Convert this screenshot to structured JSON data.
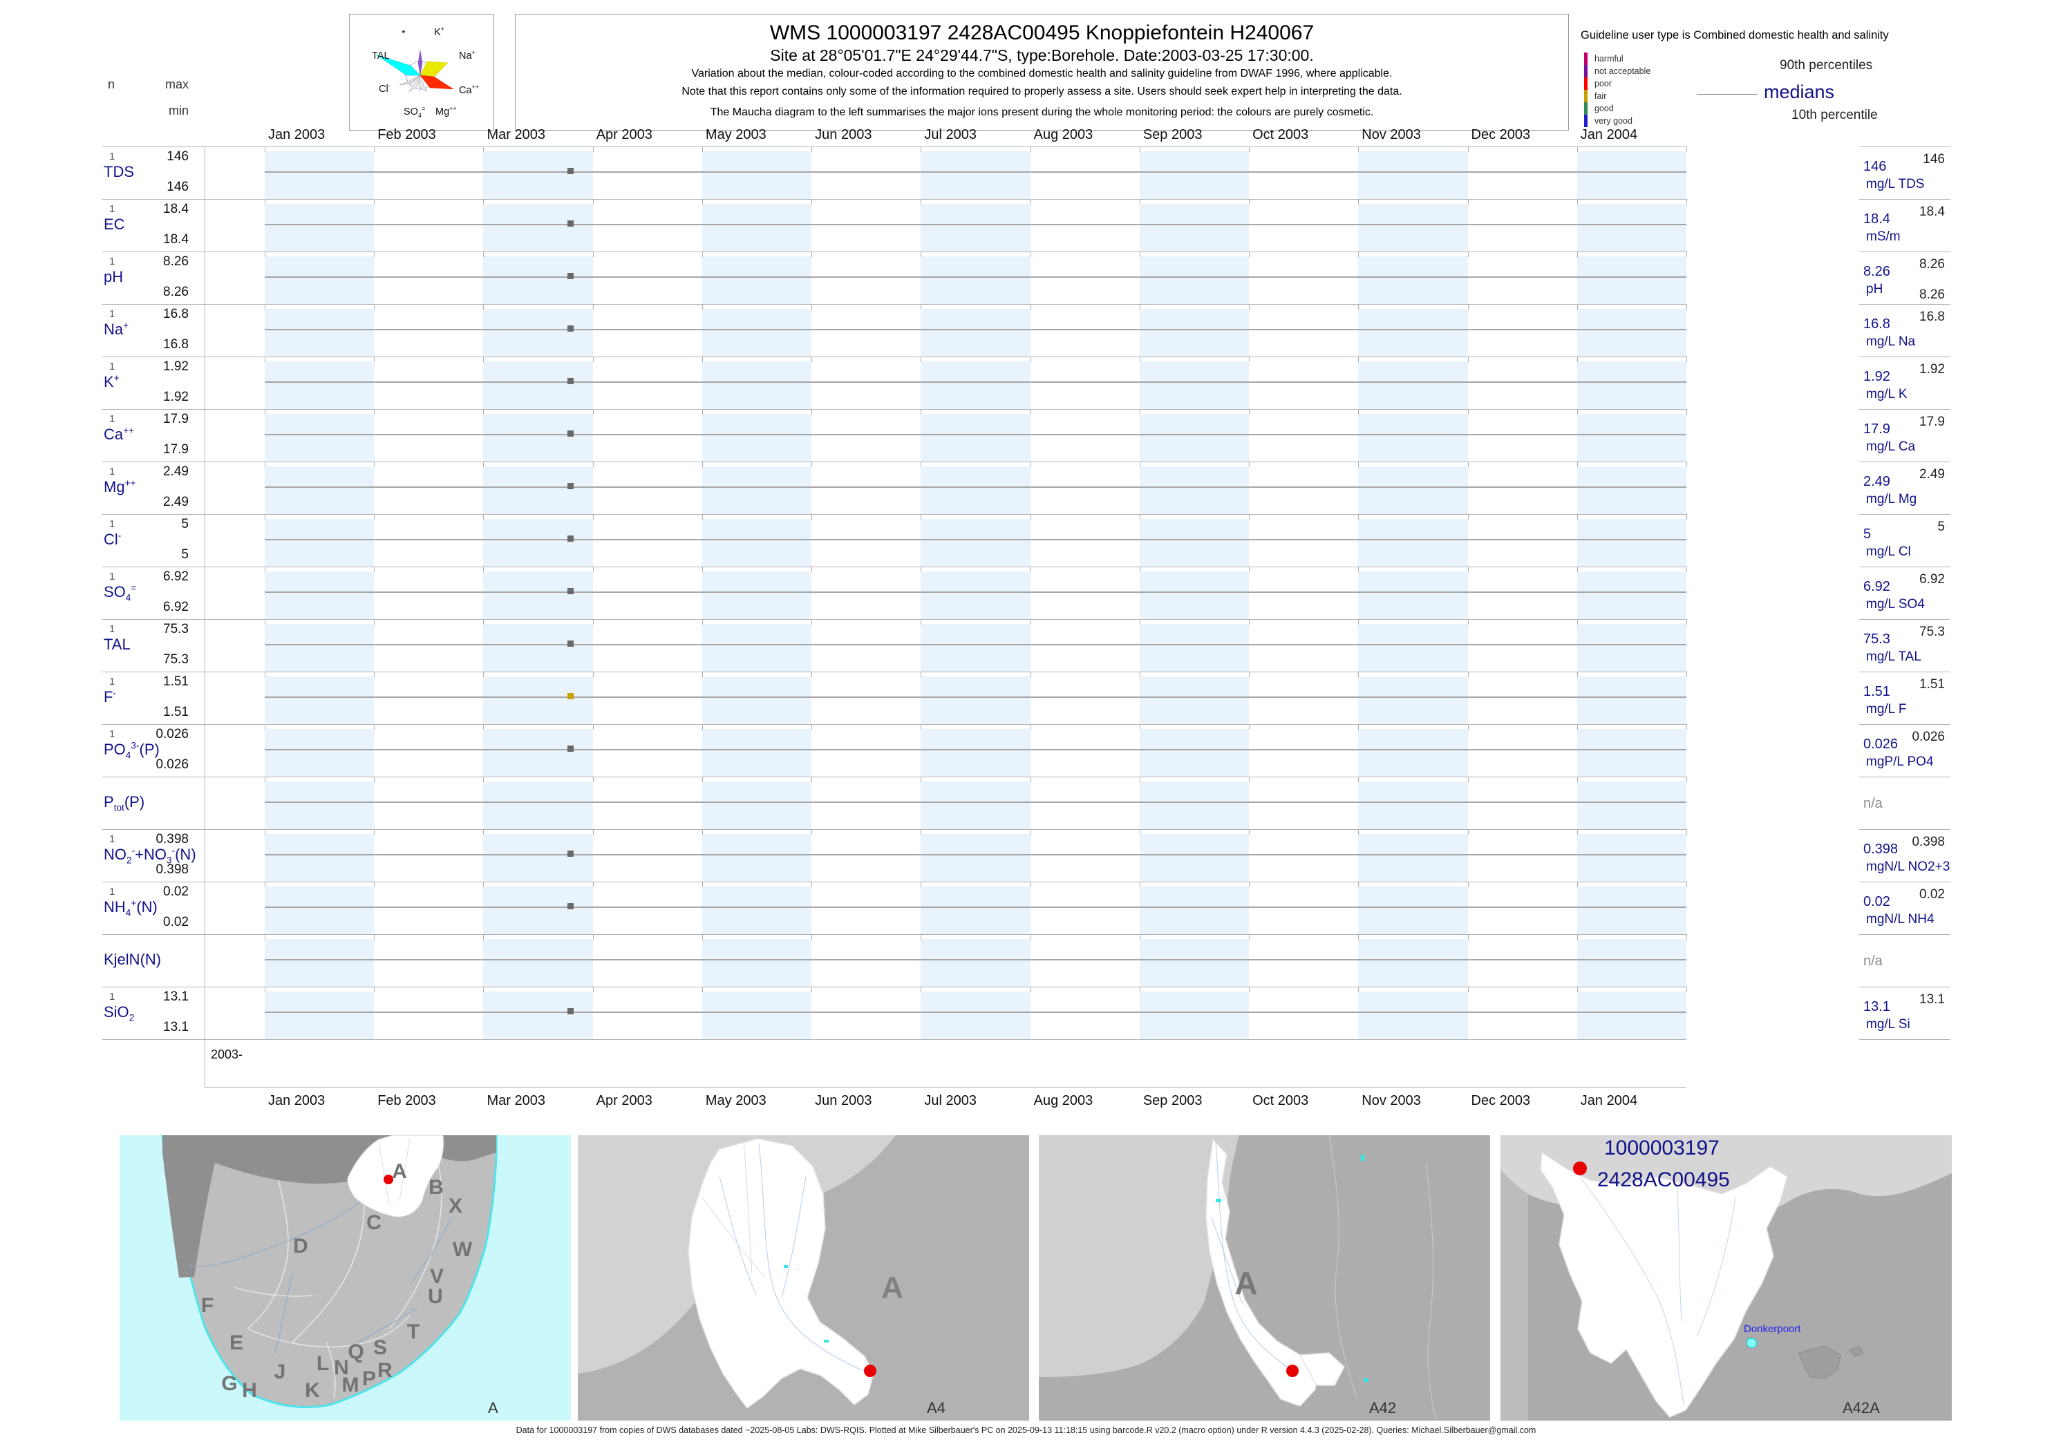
{
  "header": {
    "title": "WMS 1000003197 2428AC00495 Knoppiefontein H240067",
    "subtitle": "Site at 28°05'01.7\"E 24°29'44.7\"S, type:Borehole. Date:2003-03-25 17:30:00.",
    "note1": "Variation about the median,  colour-coded according to the combined domestic health and salinity guideline from DWAF 1996, where applicable.",
    "note2": "Note that this report contains only some of the information required to properly assess a site. Users should seek expert help in interpreting the data.",
    "note3": "The Maucha diagram to the left summarises the major ions present during the whole monitoring period: the colours are purely cosmetic."
  },
  "left_axis": {
    "n_label": "n",
    "max_label": "max",
    "min_label": "min"
  },
  "maucha": {
    "labels": [
      {
        "name": "star",
        "html": "*"
      },
      {
        "name": "k",
        "html": "K<sup>+</sup>"
      },
      {
        "name": "tal",
        "html": "TAL"
      },
      {
        "name": "na",
        "html": "Na<sup>+</sup>"
      },
      {
        "name": "cl",
        "html": "Cl<sup>-</sup>"
      },
      {
        "name": "ca",
        "html": "Ca<sup>++</sup>"
      },
      {
        "name": "so4",
        "html": "SO<sub>4</sub><sup>=</sup>"
      },
      {
        "name": "mg",
        "html": "Mg<sup>++</sup>"
      }
    ]
  },
  "guideline_legend": {
    "title": "Guideline user type is Combined domestic health and salinity",
    "classes": [
      {
        "label": "harmful",
        "color": "#C4006B"
      },
      {
        "label": "not acceptable",
        "color": "#7A0F9E"
      },
      {
        "label": "poor",
        "color": "#FF0000"
      },
      {
        "label": "fair",
        "color": "#C8A000"
      },
      {
        "label": "good",
        "color": "#2E8B57"
      },
      {
        "label": "very good",
        "color": "#1F1FD1"
      }
    ],
    "p90_label": "90th percentiles",
    "median_label": "medians",
    "p10_label": "10th percentile"
  },
  "months": [
    "Jan 2003",
    "Feb 2003",
    "Mar 2003",
    "Apr 2003",
    "May 2003",
    "Jun 2003",
    "Jul 2003",
    "Aug 2003",
    "Sep 2003",
    "Oct 2003",
    "Nov 2003",
    "Dec 2003",
    "Jan 2004"
  ],
  "year_tick_label": "2003-",
  "na_label": "n/a",
  "rows": [
    {
      "key": "tds",
      "param_html": "TDS",
      "n": "1",
      "max": "146",
      "min": "146",
      "p90": "146",
      "median": "146",
      "unit": "mg/L TDS",
      "p10": null,
      "na": false,
      "point_color": "#696969"
    },
    {
      "key": "ec",
      "param_html": "EC",
      "n": "1",
      "max": "18.4",
      "min": "18.4",
      "p90": "18.4",
      "median": "18.4",
      "unit": "mS/m",
      "p10": null,
      "na": false,
      "point_color": "#696969"
    },
    {
      "key": "ph",
      "param_html": "pH",
      "n": "1",
      "max": "8.26",
      "min": "8.26",
      "p90": "8.26",
      "median": "8.26",
      "unit": "pH",
      "p10": "8.26",
      "na": false,
      "point_color": "#696969"
    },
    {
      "key": "na-ion",
      "param_html": "Na<sup>+</sup>",
      "n": "1",
      "max": "16.8",
      "min": "16.8",
      "p90": "16.8",
      "median": "16.8",
      "unit": "mg/L Na",
      "p10": null,
      "na": false,
      "point_color": "#696969"
    },
    {
      "key": "k-ion",
      "param_html": "K<sup>+</sup>",
      "n": "1",
      "max": "1.92",
      "min": "1.92",
      "p90": "1.92",
      "median": "1.92",
      "unit": "mg/L K",
      "p10": null,
      "na": false,
      "point_color": "#696969"
    },
    {
      "key": "ca-ion",
      "param_html": "Ca<sup>++</sup>",
      "n": "1",
      "max": "17.9",
      "min": "17.9",
      "p90": "17.9",
      "median": "17.9",
      "unit": "mg/L Ca",
      "p10": null,
      "na": false,
      "point_color": "#696969"
    },
    {
      "key": "mg-ion",
      "param_html": "Mg<sup>++</sup>",
      "n": "1",
      "max": "2.49",
      "min": "2.49",
      "p90": "2.49",
      "median": "2.49",
      "unit": "mg/L Mg",
      "p10": null,
      "na": false,
      "point_color": "#696969"
    },
    {
      "key": "cl-ion",
      "param_html": "Cl<sup>-</sup>",
      "n": "1",
      "max": "5",
      "min": "5",
      "p90": "5",
      "median": "5",
      "unit": "mg/L Cl",
      "p10": null,
      "na": false,
      "point_color": "#696969"
    },
    {
      "key": "so4",
      "param_html": "SO<sub>4</sub><sup>=</sup>",
      "n": "1",
      "max": "6.92",
      "min": "6.92",
      "p90": "6.92",
      "median": "6.92",
      "unit": "mg/L SO4",
      "p10": null,
      "na": false,
      "point_color": "#696969"
    },
    {
      "key": "tal",
      "param_html": "TAL",
      "n": "1",
      "max": "75.3",
      "min": "75.3",
      "p90": "75.3",
      "median": "75.3",
      "unit": "mg/L TAL",
      "p10": null,
      "na": false,
      "point_color": "#696969"
    },
    {
      "key": "f-ion",
      "param_html": "F<sup>-</sup>",
      "n": "1",
      "max": "1.51",
      "min": "1.51",
      "p90": "1.51",
      "median": "1.51",
      "unit": "mg/L F",
      "p10": null,
      "na": false,
      "point_color": "#C8A000"
    },
    {
      "key": "po4",
      "param_html": "PO<sub>4</sub><sup>3-</sup>(P)",
      "n": "1",
      "max": "0.026",
      "min": "0.026",
      "p90": "0.026",
      "median": "0.026",
      "unit": "mgP/L PO4",
      "p10": null,
      "na": false,
      "point_color": "#696969"
    },
    {
      "key": "ptot",
      "param_html": "P<sub>tot</sub>(P)",
      "n": null,
      "max": null,
      "min": null,
      "p90": null,
      "median": null,
      "unit": null,
      "p10": null,
      "na": true,
      "point_color": null
    },
    {
      "key": "no2no3",
      "param_html": "NO<sub>2</sub><sup>-</sup>+NO<sub>3</sub><sup>-</sup>(N)",
      "n": "1",
      "max": "0.398",
      "min": "0.398",
      "p90": "0.398",
      "median": "0.398",
      "unit": "mgN/L NO2+3",
      "p10": null,
      "na": false,
      "point_color": "#696969"
    },
    {
      "key": "nh4",
      "param_html": "NH<sub>4</sub><sup>+</sup>(N)",
      "n": "1",
      "max": "0.02",
      "min": "0.02",
      "p90": "0.02",
      "median": "0.02",
      "unit": "mgN/L NH4",
      "p10": null,
      "na": false,
      "point_color": "#696969"
    },
    {
      "key": "kjeln",
      "param_html": "KjelN(N)",
      "n": null,
      "max": null,
      "min": null,
      "p90": null,
      "median": null,
      "unit": null,
      "p10": null,
      "na": true,
      "point_color": null
    },
    {
      "key": "sio2",
      "param_html": "SiO<sub>2</sub>",
      "n": "1",
      "max": "13.1",
      "min": "13.1",
      "p90": "13.1",
      "median": "13.1",
      "unit": "mg/L Si",
      "p10": null,
      "na": false,
      "point_color": "#696969"
    }
  ],
  "maps": [
    {
      "label": "A"
    },
    {
      "label": "A4"
    },
    {
      "label": "A42"
    },
    {
      "label": "A42A",
      "site_id": "1000003197",
      "site_code": "2428AC00495",
      "place": "Donkerpoort"
    }
  ],
  "map1_letters": [
    "A",
    "B",
    "X",
    "W",
    "C",
    "V",
    "U",
    "D",
    "F",
    "T",
    "E",
    "Q",
    "S",
    "R",
    "L",
    "N",
    "J",
    "M",
    "P",
    "G",
    "H",
    "K"
  ],
  "footer": "Data for 1000003197 from copies of DWS databases dated ~2025-08-05 Labs: DWS-RQIS. Plotted at Mike Silberbauer's PC on 2025-09-13 11:18:15 using barcode.R v20.2 (macro option) under R version 4.4.3 (2025-02-28). Queries: Michael.Silberbauer@gmail.com",
  "chart_data": {
    "type": "scatter",
    "title": "WMS 1000003197 2428AC00495 Knoppiefontein H240067",
    "x_axis": {
      "range": [
        "2003-01-01",
        "2004-01-31"
      ],
      "ticks": [
        "Jan 2003",
        "Feb 2003",
        "Mar 2003",
        "Apr 2003",
        "May 2003",
        "Jun 2003",
        "Jul 2003",
        "Aug 2003",
        "Sep 2003",
        "Oct 2003",
        "Nov 2003",
        "Dec 2003",
        "Jan 2004"
      ]
    },
    "sample_datetime": "2003-03-25 17:30:00",
    "legend_position": "top-right",
    "grid": false,
    "panels": [
      {
        "param": "TDS",
        "unit": "mg/L TDS",
        "n": 1,
        "max": 146,
        "min": 146,
        "median": 146,
        "p90": 146,
        "p10": 146,
        "points": [
          {
            "date": "2003-03-25",
            "value": 146,
            "marker": "square",
            "color": "#696969"
          }
        ]
      },
      {
        "param": "EC",
        "unit": "mS/m",
        "n": 1,
        "max": 18.4,
        "min": 18.4,
        "median": 18.4,
        "p90": 18.4,
        "p10": 18.4,
        "points": [
          {
            "date": "2003-03-25",
            "value": 18.4,
            "marker": "square",
            "color": "#696969"
          }
        ]
      },
      {
        "param": "pH",
        "unit": "pH",
        "n": 1,
        "max": 8.26,
        "min": 8.26,
        "median": 8.26,
        "p90": 8.26,
        "p10": 8.26,
        "points": [
          {
            "date": "2003-03-25",
            "value": 8.26,
            "marker": "square",
            "color": "#696969"
          }
        ]
      },
      {
        "param": "Na+",
        "unit": "mg/L Na",
        "n": 1,
        "max": 16.8,
        "min": 16.8,
        "median": 16.8,
        "p90": 16.8,
        "p10": 16.8,
        "points": [
          {
            "date": "2003-03-25",
            "value": 16.8,
            "marker": "square",
            "color": "#696969"
          }
        ]
      },
      {
        "param": "K+",
        "unit": "mg/L K",
        "n": 1,
        "max": 1.92,
        "min": 1.92,
        "median": 1.92,
        "p90": 1.92,
        "p10": 1.92,
        "points": [
          {
            "date": "2003-03-25",
            "value": 1.92,
            "marker": "square",
            "color": "#696969"
          }
        ]
      },
      {
        "param": "Ca++",
        "unit": "mg/L Ca",
        "n": 1,
        "max": 17.9,
        "min": 17.9,
        "median": 17.9,
        "p90": 17.9,
        "p10": 17.9,
        "points": [
          {
            "date": "2003-03-25",
            "value": 17.9,
            "marker": "square",
            "color": "#696969"
          }
        ]
      },
      {
        "param": "Mg++",
        "unit": "mg/L Mg",
        "n": 1,
        "max": 2.49,
        "min": 2.49,
        "median": 2.49,
        "p90": 2.49,
        "p10": 2.49,
        "points": [
          {
            "date": "2003-03-25",
            "value": 2.49,
            "marker": "square",
            "color": "#696969"
          }
        ]
      },
      {
        "param": "Cl-",
        "unit": "mg/L Cl",
        "n": 1,
        "max": 5,
        "min": 5,
        "median": 5,
        "p90": 5,
        "p10": 5,
        "points": [
          {
            "date": "2003-03-25",
            "value": 5,
            "marker": "square",
            "color": "#696969"
          }
        ]
      },
      {
        "param": "SO4=",
        "unit": "mg/L SO4",
        "n": 1,
        "max": 6.92,
        "min": 6.92,
        "median": 6.92,
        "p90": 6.92,
        "p10": 6.92,
        "points": [
          {
            "date": "2003-03-25",
            "value": 6.92,
            "marker": "square",
            "color": "#696969"
          }
        ]
      },
      {
        "param": "TAL",
        "unit": "mg/L TAL",
        "n": 1,
        "max": 75.3,
        "min": 75.3,
        "median": 75.3,
        "p90": 75.3,
        "p10": 75.3,
        "points": [
          {
            "date": "2003-03-25",
            "value": 75.3,
            "marker": "square",
            "color": "#696969"
          }
        ]
      },
      {
        "param": "F-",
        "unit": "mg/L F",
        "n": 1,
        "max": 1.51,
        "min": 1.51,
        "median": 1.51,
        "p90": 1.51,
        "p10": 1.51,
        "points": [
          {
            "date": "2003-03-25",
            "value": 1.51,
            "marker": "square",
            "color": "#C8A000",
            "guideline_class": "fair"
          }
        ]
      },
      {
        "param": "PO43-(P)",
        "unit": "mgP/L PO4",
        "n": 1,
        "max": 0.026,
        "min": 0.026,
        "median": 0.026,
        "p90": 0.026,
        "p10": 0.026,
        "points": [
          {
            "date": "2003-03-25",
            "value": 0.026,
            "marker": "square",
            "color": "#696969"
          }
        ]
      },
      {
        "param": "Ptot(P)",
        "unit": null,
        "n": null,
        "max": null,
        "min": null,
        "median": null,
        "p90": null,
        "p10": null,
        "points": []
      },
      {
        "param": "NO2-+NO3-(N)",
        "unit": "mgN/L NO2+3",
        "n": 1,
        "max": 0.398,
        "min": 0.398,
        "median": 0.398,
        "p90": 0.398,
        "p10": 0.398,
        "points": [
          {
            "date": "2003-03-25",
            "value": 0.398,
            "marker": "square",
            "color": "#696969"
          }
        ]
      },
      {
        "param": "NH4+(N)",
        "unit": "mgN/L NH4",
        "n": 1,
        "max": 0.02,
        "min": 0.02,
        "median": 0.02,
        "p90": 0.02,
        "p10": 0.02,
        "points": [
          {
            "date": "2003-03-25",
            "value": 0.02,
            "marker": "square",
            "color": "#696969"
          }
        ]
      },
      {
        "param": "KjelN(N)",
        "unit": null,
        "n": null,
        "max": null,
        "min": null,
        "median": null,
        "p90": null,
        "p10": null,
        "points": []
      },
      {
        "param": "SiO2",
        "unit": "mg/L Si",
        "n": 1,
        "max": 13.1,
        "min": 13.1,
        "median": 13.1,
        "p90": 13.1,
        "p10": 13.1,
        "points": [
          {
            "date": "2003-03-25",
            "value": 13.1,
            "marker": "square",
            "color": "#696969"
          }
        ]
      }
    ]
  }
}
